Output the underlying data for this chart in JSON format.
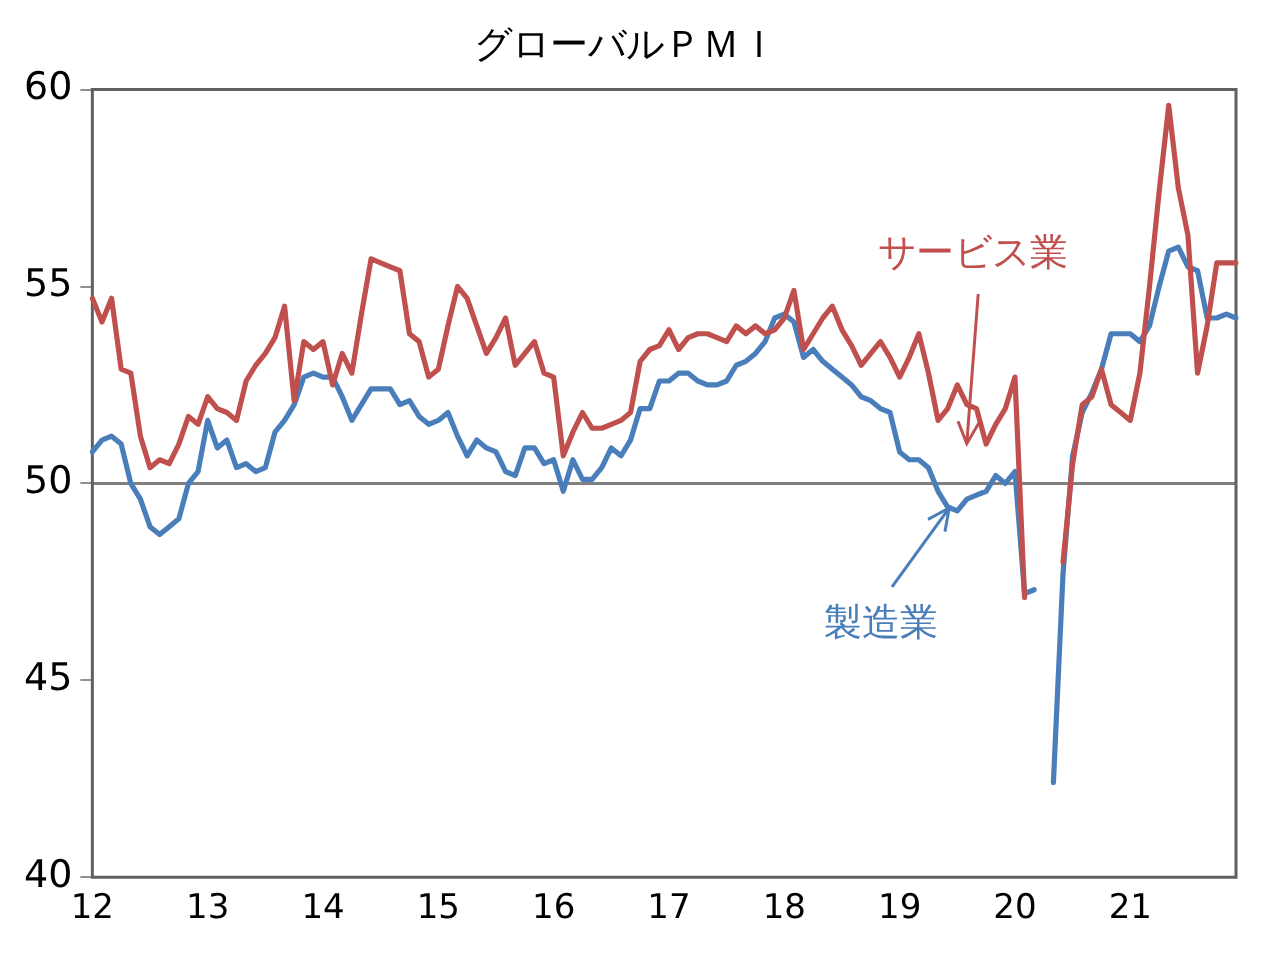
{
  "chart_data": {
    "type": "line",
    "title": "グローバルＰＭＩ",
    "categories": [
      "12",
      null,
      null,
      null,
      null,
      null,
      null,
      null,
      null,
      null,
      null,
      null,
      "13",
      null,
      null,
      null,
      null,
      null,
      null,
      null,
      null,
      null,
      null,
      null,
      "14",
      null,
      null,
      null,
      null,
      null,
      null,
      null,
      null,
      null,
      null,
      null,
      "15",
      null,
      null,
      null,
      null,
      null,
      null,
      null,
      null,
      null,
      null,
      null,
      "16",
      null,
      null,
      null,
      null,
      null,
      null,
      null,
      null,
      null,
      null,
      null,
      "17",
      null,
      null,
      null,
      null,
      null,
      null,
      null,
      null,
      null,
      null,
      null,
      "18",
      null,
      null,
      null,
      null,
      null,
      null,
      null,
      null,
      null,
      null,
      null,
      "19",
      null,
      null,
      null,
      null,
      null,
      null,
      null,
      null,
      null,
      null,
      null,
      "20",
      null,
      null,
      null,
      null,
      null,
      null,
      null,
      null,
      null,
      null,
      null,
      "21",
      null,
      null,
      null,
      null,
      null,
      null,
      null,
      null,
      null,
      null,
      null
    ],
    "series": [
      {
        "name": "サービス業",
        "color": "#c0504d",
        "values": [
          54.7,
          54.1,
          54.7,
          52.9,
          52.8,
          51.2,
          50.4,
          50.6,
          50.5,
          51.0,
          51.7,
          51.5,
          52.2,
          51.9,
          51.8,
          51.6,
          52.6,
          53.0,
          53.3,
          53.7,
          54.5,
          52.1,
          53.6,
          53.4,
          53.6,
          52.5,
          53.3,
          52.8,
          54.3,
          55.7,
          55.6,
          55.5,
          55.4,
          53.8,
          53.6,
          52.7,
          52.9,
          54.0,
          55.0,
          54.7,
          54.0,
          53.3,
          53.7,
          54.2,
          53.0,
          53.3,
          53.6,
          52.8,
          52.7,
          50.7,
          51.3,
          51.8,
          51.4,
          51.4,
          51.5,
          51.6,
          51.8,
          53.1,
          53.4,
          53.5,
          53.9,
          53.4,
          53.7,
          53.8,
          53.8,
          53.7,
          53.6,
          54.0,
          53.8,
          54.0,
          53.8,
          53.9,
          54.2,
          54.9,
          53.4,
          53.8,
          54.2,
          54.5,
          53.9,
          53.5,
          53.0,
          53.3,
          53.6,
          53.2,
          52.7,
          53.2,
          53.8,
          52.8,
          51.6,
          51.9,
          52.5,
          52.0,
          51.9,
          51.0,
          51.5,
          51.9,
          52.7,
          47.1,
          null,
          null,
          null,
          48.0,
          50.5,
          52.0,
          52.2,
          52.9,
          52.0,
          51.8,
          51.6,
          52.8,
          55.0,
          57.4,
          59.6,
          57.5,
          56.3,
          52.8,
          54.0,
          55.6,
          55.6,
          55.6
        ]
      },
      {
        "name": "製造業",
        "color": "#4a7ebb",
        "values": [
          50.8,
          51.1,
          51.2,
          51.0,
          50.0,
          49.6,
          48.9,
          48.7,
          48.9,
          49.1,
          50.0,
          50.3,
          51.6,
          50.9,
          51.1,
          50.4,
          50.5,
          50.3,
          50.4,
          51.3,
          51.6,
          52.0,
          52.7,
          52.8,
          52.7,
          52.7,
          52.2,
          51.6,
          52.0,
          52.4,
          52.4,
          52.4,
          52.0,
          52.1,
          51.7,
          51.5,
          51.6,
          51.8,
          51.2,
          50.7,
          51.1,
          50.9,
          50.8,
          50.3,
          50.2,
          50.9,
          50.9,
          50.5,
          50.6,
          49.8,
          50.6,
          50.1,
          50.1,
          50.4,
          50.9,
          50.7,
          51.1,
          51.9,
          51.9,
          52.6,
          52.6,
          52.8,
          52.8,
          52.6,
          52.5,
          52.5,
          52.6,
          53.0,
          53.1,
          53.3,
          53.6,
          54.2,
          54.3,
          54.1,
          53.2,
          53.4,
          53.1,
          52.9,
          52.7,
          52.5,
          52.2,
          52.1,
          51.9,
          51.8,
          50.8,
          50.6,
          50.6,
          50.4,
          49.8,
          49.4,
          49.3,
          49.6,
          49.7,
          49.8,
          50.2,
          50.0,
          50.3,
          47.2,
          47.3,
          null,
          42.4,
          47.7,
          50.7,
          51.8,
          52.3,
          52.9,
          53.8,
          53.8,
          53.8,
          53.6,
          54.0,
          55.0,
          55.9,
          56.0,
          55.5,
          55.4,
          54.2,
          54.2,
          54.3,
          54.2
        ]
      }
    ],
    "ylim": [
      40,
      60
    ],
    "yticks": [
      40,
      45,
      50,
      55,
      60
    ],
    "grid": false,
    "legend": "right",
    "marker": "none",
    "line_style": "solid",
    "ref_lines": [
      {
        "axis": "y",
        "value": 50,
        "color": "#808080"
      }
    ]
  }
}
